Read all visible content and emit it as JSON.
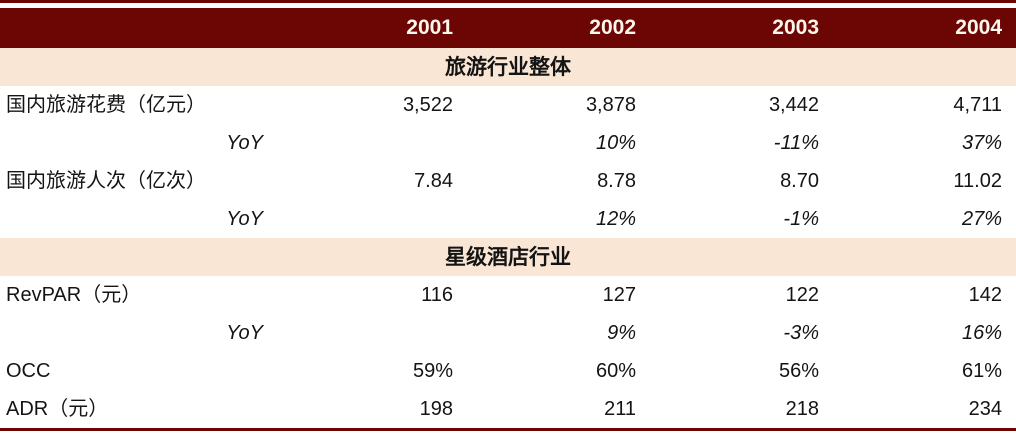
{
  "table": {
    "columns": [
      "2001",
      "2002",
      "2003",
      "2004"
    ],
    "sections": [
      {
        "title": "旅游行业整体",
        "rows": [
          {
            "label": "国内旅游花费（亿元）",
            "values": [
              "3,522",
              "3,878",
              "3,442",
              "4,711"
            ]
          },
          {
            "label": "YoY",
            "values": [
              "",
              "10%",
              "-11%",
              "37%"
            ]
          },
          {
            "label": "国内旅游人次（亿次）",
            "values": [
              "7.84",
              "8.78",
              "8.70",
              "11.02"
            ]
          },
          {
            "label": "YoY",
            "values": [
              "",
              "12%",
              "-1%",
              "27%"
            ]
          }
        ]
      },
      {
        "title": "星级酒店行业",
        "rows": [
          {
            "label": "RevPAR（元）",
            "values": [
              "116",
              "127",
              "122",
              "142"
            ]
          },
          {
            "label": "YoY",
            "values": [
              "",
              "9%",
              "-3%",
              "16%"
            ]
          },
          {
            "label": "OCC",
            "values": [
              "59%",
              "60%",
              "56%",
              "61%"
            ]
          },
          {
            "label": "ADR（元）",
            "values": [
              "198",
              "211",
              "218",
              "234"
            ]
          }
        ]
      }
    ]
  },
  "colors": {
    "header_bg": "#6B0604",
    "header_text": "#FFF6EC",
    "section_bg": "#FAE6D4",
    "body_text": "#141414",
    "rule": "#6B0604"
  },
  "chart_data": {
    "type": "table",
    "columns": [
      "2001",
      "2002",
      "2003",
      "2004"
    ],
    "sections": [
      {
        "title": "旅游行业整体",
        "rows": [
          {
            "label": "国内旅游花费（亿元）",
            "values": [
              3522,
              3878,
              3442,
              4711
            ]
          },
          {
            "label": "YoY",
            "values": [
              null,
              "10%",
              "-11%",
              "37%"
            ]
          },
          {
            "label": "国内旅游人次（亿次）",
            "values": [
              7.84,
              8.78,
              8.7,
              11.02
            ]
          },
          {
            "label": "YoY",
            "values": [
              null,
              "12%",
              "-1%",
              "27%"
            ]
          }
        ]
      },
      {
        "title": "星级酒店行业",
        "rows": [
          {
            "label": "RevPAR（元）",
            "values": [
              116,
              127,
              122,
              142
            ]
          },
          {
            "label": "YoY",
            "values": [
              null,
              "9%",
              "-3%",
              "16%"
            ]
          },
          {
            "label": "OCC",
            "values": [
              "59%",
              "60%",
              "56%",
              "61%"
            ]
          },
          {
            "label": "ADR（元）",
            "values": [
              198,
              211,
              218,
              234
            ]
          }
        ]
      }
    ]
  }
}
